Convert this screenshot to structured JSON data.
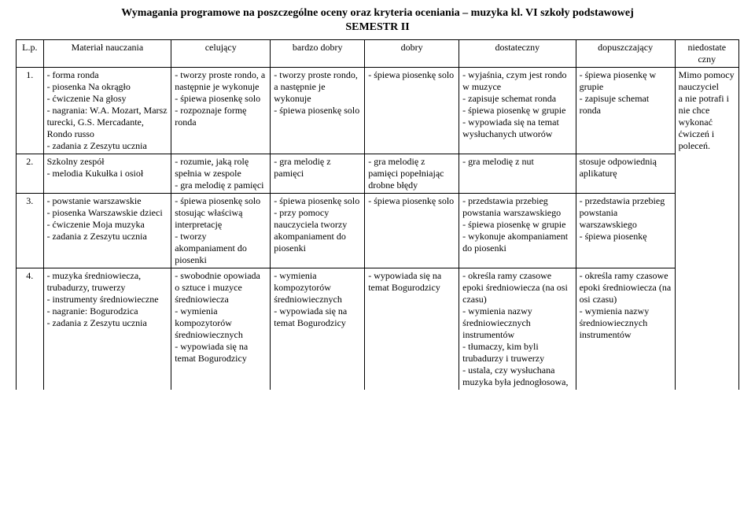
{
  "title": {
    "line1": "Wymagania programowe na poszczególne oceny oraz kryteria oceniania – muzyka kl. VI szkoły podstawowej",
    "line2": "SEMESTR II"
  },
  "headers": {
    "lp": "L.p.",
    "material": "Materiał nauczania",
    "celujacy": "celujący",
    "bardzo_dobry": "bardzo dobry",
    "dobry": "dobry",
    "dostateczny": "dostateczny",
    "dopuszczajacy": "dopuszczający",
    "niedostateczny": "niedostate\nczny"
  },
  "rows": [
    {
      "lp": "1.",
      "material": "- forma ronda\n- piosenka Na okrągło\n- ćwiczenie Na głosy\n- nagrania: W.A. Mozart, Marsz turecki, G.S. Mercadante, Rondo russo\n- zadania z Zeszytu ucznia",
      "celujacy": "- tworzy proste rondo, a następnie je wykonuje\n- śpiewa piosenkę solo\n- rozpoznaje formę ronda",
      "bardzo_dobry": "- tworzy proste rondo, a następnie je wykonuje\n- śpiewa piosenkę solo",
      "dobry": "- śpiewa piosenkę solo",
      "dostateczny": "- wyjaśnia, czym jest rondo w muzyce\n- zapisuje schemat ronda\n- śpiewa piosenkę w grupie\n- wypowiada się na temat wysłuchanych utworów",
      "dopuszczajacy": "- śpiewa piosenkę w grupie\n- zapisuje schemat ronda",
      "niedostateczny": "Mimo pomocy nauczyciel\na nie potrafi i nie chce wykonać ćwiczeń i poleceń."
    },
    {
      "lp": "2.",
      "material": "Szkolny zespół\n- melodia Kukułka i osioł",
      "celujacy": "- rozumie, jaką rolę spełnia w zespole\n- gra melodię z pamięci",
      "bardzo_dobry": "- gra melodię z pamięci",
      "dobry": "- gra melodię z pamięci popełniając drobne błędy",
      "dostateczny": "- gra melodię z nut",
      "dopuszczajacy": "stosuje odpowiednią aplikaturę",
      "niedostateczny": ""
    },
    {
      "lp": "3.",
      "material": "- powstanie warszawskie\n- piosenka Warszawskie dzieci\n- ćwiczenie Moja muzyka\n- zadania z Zeszytu ucznia",
      "celujacy": "- śpiewa piosenkę solo stosując właściwą interpretację\n- tworzy akompaniament do piosenki",
      "bardzo_dobry": "- śpiewa piosenkę solo\n- przy pomocy nauczyciela tworzy akompaniament do piosenki",
      "dobry": "- śpiewa piosenkę solo",
      "dostateczny": "- przedstawia przebieg powstania warszawskiego\n- śpiewa piosenkę w grupie\n- wykonuje akompaniament do piosenki",
      "dopuszczajacy": "- przedstawia przebieg powstania warszawskiego\n- śpiewa piosenkę",
      "niedostateczny": ""
    },
    {
      "lp": "4.",
      "material": "- muzyka średniowiecza, trubadurzy, truwerzy\n- instrumenty średniowieczne\n- nagranie: Bogurodzica\n- zadania z Zeszytu ucznia",
      "celujacy": "- swobodnie opowiada o sztuce i muzyce średniowiecza\n- wymienia kompozytorów średniowiecznych\n- wypowiada się na temat Bogurodzicy",
      "bardzo_dobry": "- wymienia kompozytorów średniowiecznych\n- wypowiada się na temat Bogurodzicy",
      "dobry": "- wypowiada się na temat Bogurodzicy",
      "dostateczny": "- określa ramy czasowe epoki średniowiecza (na osi czasu)\n- wymienia nazwy średniowiecznych instrumentów\n- tłumaczy, kim byli trubadurzy i truwerzy\n- ustala, czy wysłuchana muzyka była jednogłosowa,",
      "dopuszczajacy": "- określa ramy czasowe epoki średniowiecza (na osi czasu)\n- wymienia nazwy średniowiecznych instrumentów",
      "niedostateczny": ""
    }
  ]
}
